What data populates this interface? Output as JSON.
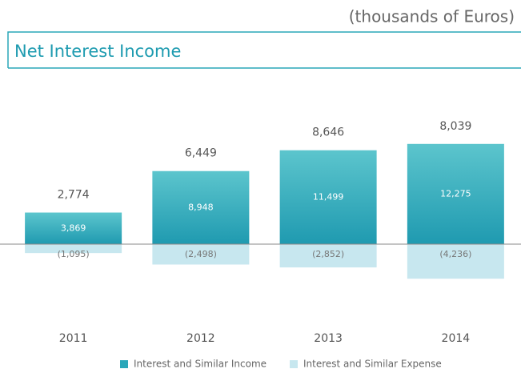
{
  "chart_data": {
    "type": "bar",
    "title": "Net Interest Income",
    "subtitle": "(thousands of Euros)",
    "categories": [
      "2011",
      "2012",
      "2013",
      "2014"
    ],
    "series": [
      {
        "name": "Interest and Similar Income",
        "color": "#2aa7b9",
        "values": [
          3869,
          8948,
          11499,
          12275
        ],
        "value_labels": [
          "3,869",
          "8,948",
          "11,499",
          "12,275"
        ]
      },
      {
        "name": "Interest and Similar Expense",
        "color": "#c7e7ef",
        "values": [
          -1095,
          -2498,
          -2852,
          -4236
        ],
        "value_labels": [
          "(1,095)",
          "(2,498)",
          "(2,852)",
          "(4,236)"
        ]
      }
    ],
    "totals": [
      2774,
      6449,
      8646,
      8039
    ],
    "total_labels": [
      "2,774",
      "6,449",
      "8,646",
      "8,039"
    ],
    "ylim": [
      -10000,
      15000
    ]
  }
}
